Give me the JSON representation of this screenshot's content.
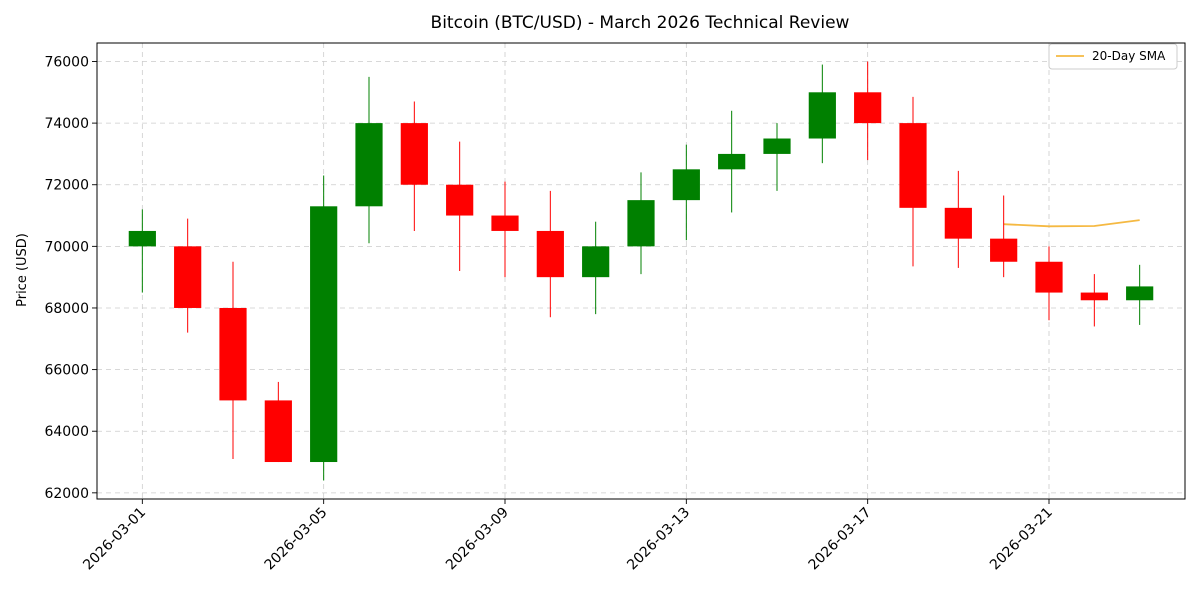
{
  "chart_data": {
    "type": "candlestick",
    "title": "Bitcoin (BTC/USD) - March 2026 Technical Review",
    "xlabel": "",
    "ylabel": "Price (USD)",
    "ylim": [
      61800,
      76600
    ],
    "yticks": [
      62000,
      64000,
      66000,
      68000,
      70000,
      72000,
      74000,
      76000
    ],
    "xlim": [
      "2026-02-28",
      "2026-03-24"
    ],
    "xticks": [
      "2026-03-01",
      "2026-03-05",
      "2026-03-09",
      "2026-03-13",
      "2026-03-17",
      "2026-03-21"
    ],
    "grid": true,
    "legend_position": "top-right",
    "colors": {
      "up": "#008000",
      "down": "#ff0000",
      "sma": "#f5b942"
    },
    "candles": [
      {
        "date": "2026-03-01",
        "open": 70000,
        "high": 71200,
        "low": 68500,
        "close": 70500
      },
      {
        "date": "2026-03-02",
        "open": 70000,
        "high": 70900,
        "low": 67200,
        "close": 68000
      },
      {
        "date": "2026-03-03",
        "open": 68000,
        "high": 69500,
        "low": 63100,
        "close": 65000
      },
      {
        "date": "2026-03-04",
        "open": 65000,
        "high": 65600,
        "low": 63000,
        "close": 63000
      },
      {
        "date": "2026-03-05",
        "open": 63000,
        "high": 72300,
        "low": 62400,
        "close": 71300
      },
      {
        "date": "2026-03-06",
        "open": 71300,
        "high": 75500,
        "low": 70100,
        "close": 74000
      },
      {
        "date": "2026-03-07",
        "open": 74000,
        "high": 74700,
        "low": 70500,
        "close": 72000
      },
      {
        "date": "2026-03-08",
        "open": 72000,
        "high": 73400,
        "low": 69200,
        "close": 71000
      },
      {
        "date": "2026-03-09",
        "open": 71000,
        "high": 72100,
        "low": 69000,
        "close": 70500
      },
      {
        "date": "2026-03-10",
        "open": 70500,
        "high": 71800,
        "low": 67700,
        "close": 69000
      },
      {
        "date": "2026-03-11",
        "open": 69000,
        "high": 70800,
        "low": 67800,
        "close": 70000
      },
      {
        "date": "2026-03-12",
        "open": 70000,
        "high": 72400,
        "low": 69100,
        "close": 71500
      },
      {
        "date": "2026-03-13",
        "open": 71500,
        "high": 73300,
        "low": 70200,
        "close": 72500
      },
      {
        "date": "2026-03-14",
        "open": 72500,
        "high": 74400,
        "low": 71100,
        "close": 73000
      },
      {
        "date": "2026-03-15",
        "open": 73000,
        "high": 74000,
        "low": 71800,
        "close": 73500
      },
      {
        "date": "2026-03-16",
        "open": 73500,
        "high": 75900,
        "low": 72700,
        "close": 75000
      },
      {
        "date": "2026-03-17",
        "open": 75000,
        "high": 76000,
        "low": 72800,
        "close": 74000
      },
      {
        "date": "2026-03-18",
        "open": 74000,
        "high": 74850,
        "low": 69350,
        "close": 71250
      },
      {
        "date": "2026-03-19",
        "open": 71250,
        "high": 72450,
        "low": 69300,
        "close": 70250
      },
      {
        "date": "2026-03-20",
        "open": 70250,
        "high": 71650,
        "low": 69000,
        "close": 69500
      },
      {
        "date": "2026-03-21",
        "open": 69500,
        "high": 70000,
        "low": 67600,
        "close": 68500
      },
      {
        "date": "2026-03-22",
        "open": 68500,
        "high": 69100,
        "low": 67400,
        "close": 68250
      },
      {
        "date": "2026-03-23",
        "open": 68250,
        "high": 69400,
        "low": 67450,
        "close": 68700
      }
    ],
    "series": [
      {
        "name": "20-Day SMA",
        "type": "line",
        "x": [
          "2026-03-20",
          "2026-03-21",
          "2026-03-22",
          "2026-03-23"
        ],
        "values": [
          70720,
          70650,
          70660,
          70850
        ]
      }
    ]
  }
}
